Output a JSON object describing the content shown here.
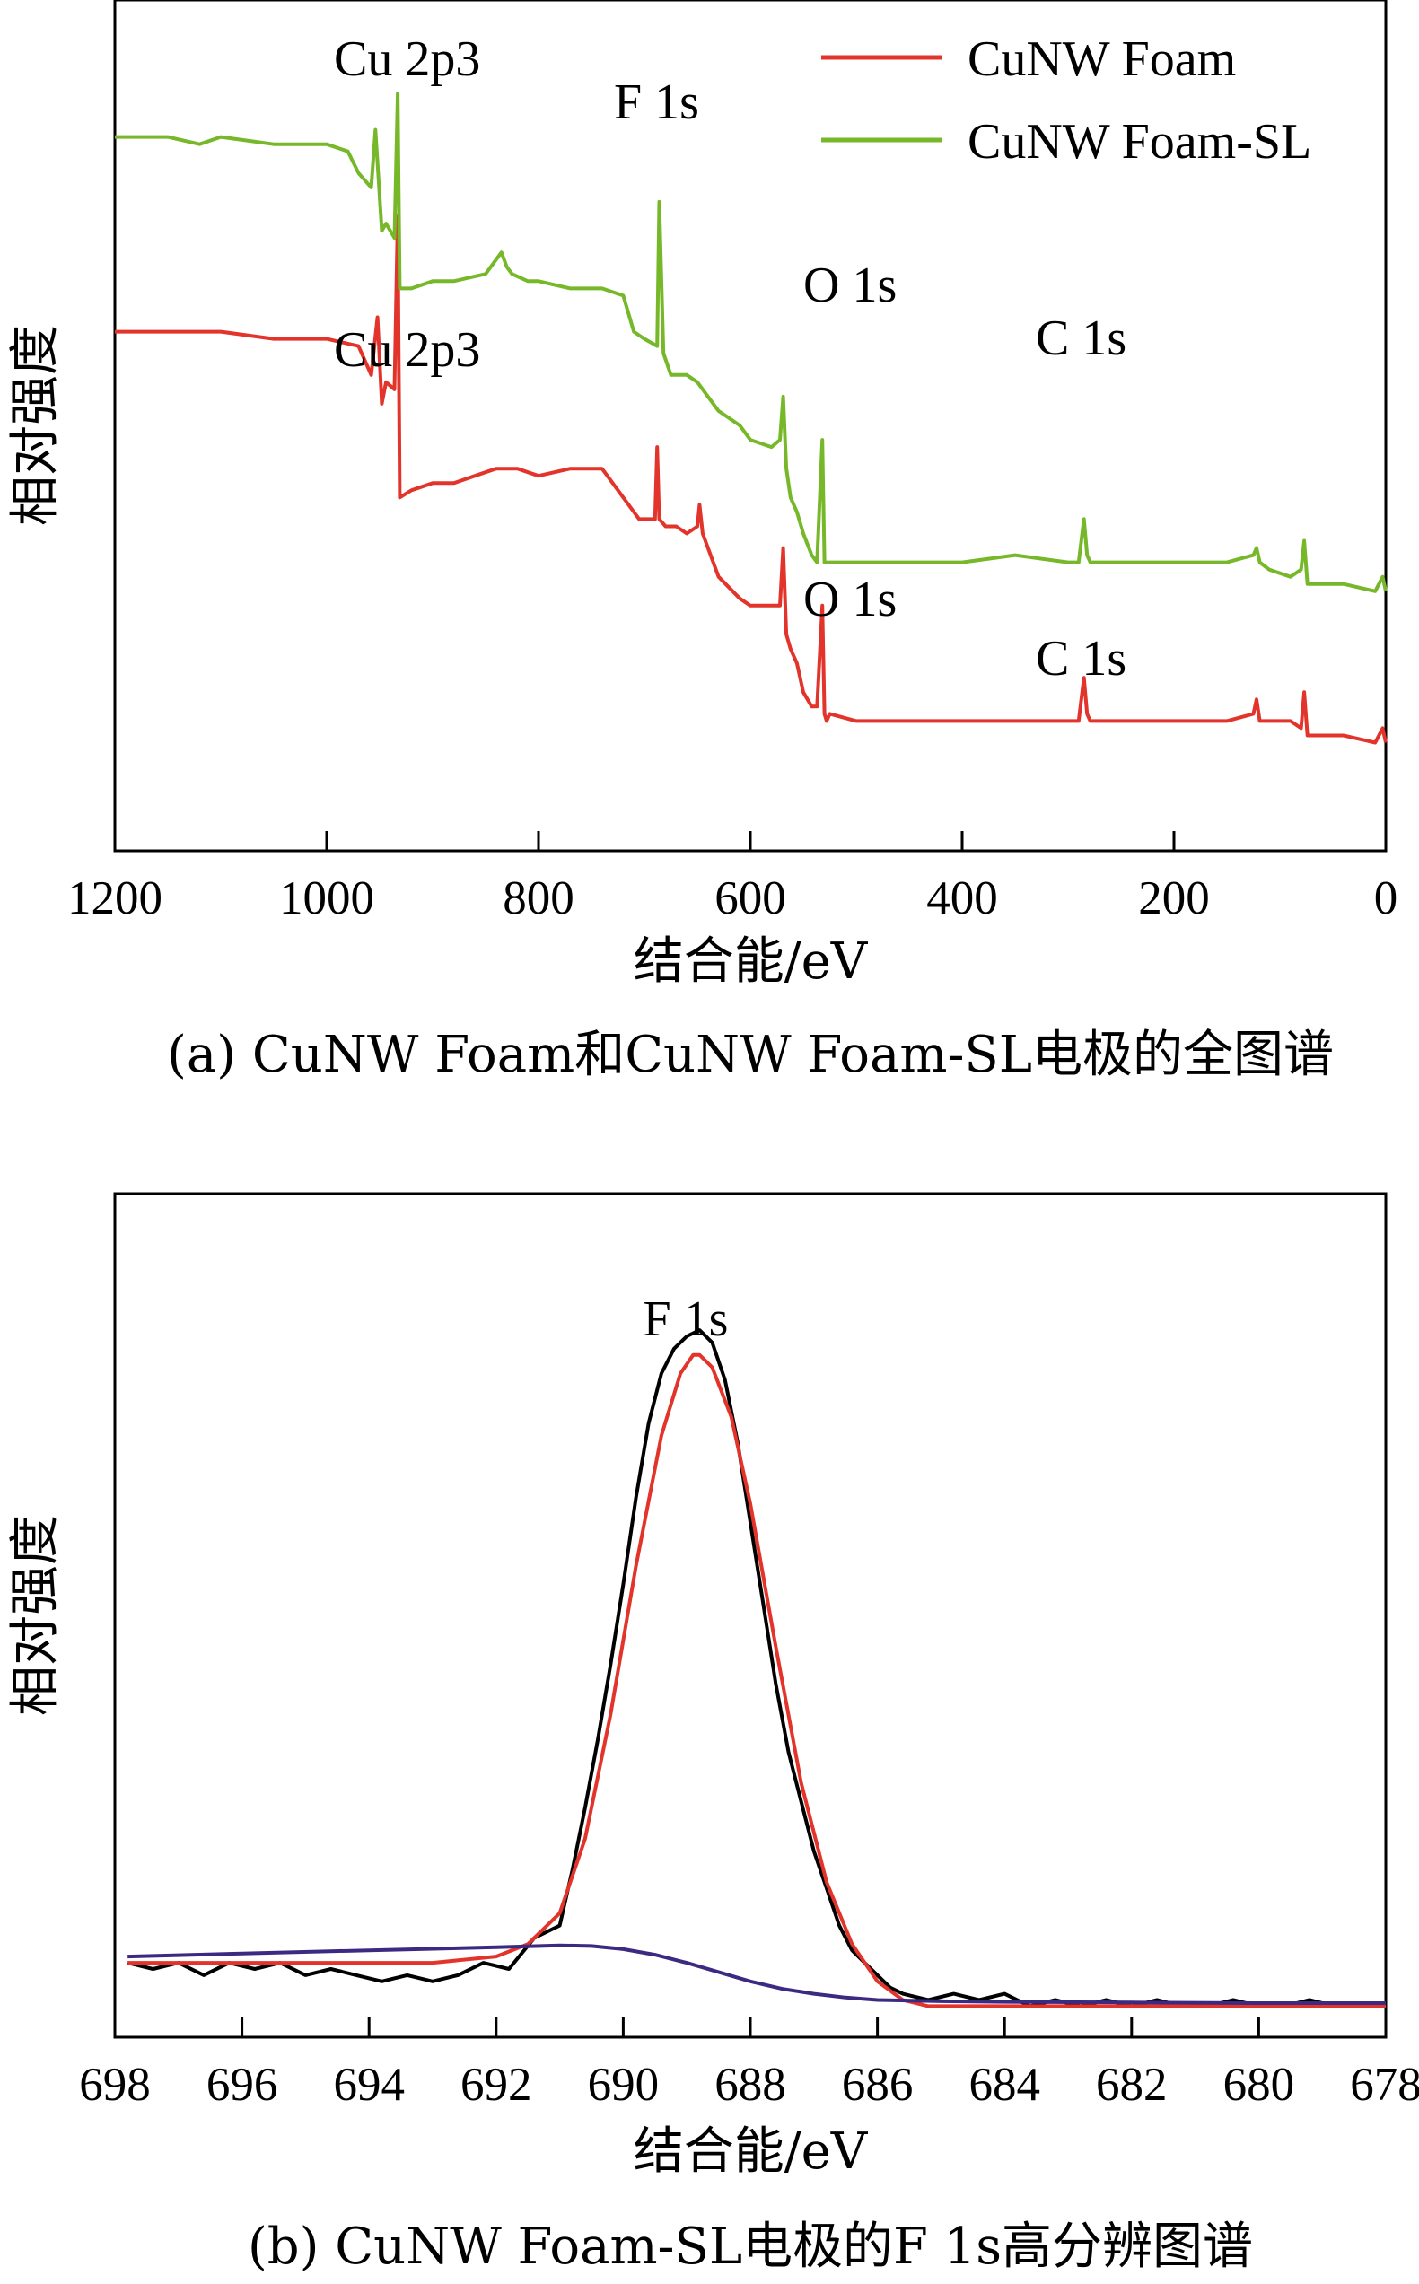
{
  "chart_data": [
    {
      "type": "line",
      "xlabel": "结合能/eV",
      "ylabel": "相对强度",
      "caption": "(a) CuNW Foam和CuNW Foam-SL电极的全图谱",
      "xlim": [
        1200,
        0
      ],
      "x_ticks": [
        "1200",
        "1000",
        "800",
        "600",
        "400",
        "200",
        "0"
      ],
      "y_ticks": false,
      "legend": "top-right",
      "series": [
        {
          "name": "CuNW Foam",
          "color": "#e2342a",
          "x": [
            1200,
            1150,
            1100,
            1050,
            1000,
            970,
            958,
            952,
            948,
            944,
            936,
            933,
            931,
            920,
            900,
            880,
            860,
            840,
            820,
            800,
            770,
            740,
            720,
            705,
            700,
            690,
            688,
            686,
            680,
            670,
            660,
            650,
            648,
            645,
            640,
            630,
            610,
            600,
            580,
            572,
            569,
            566,
            562,
            556,
            550,
            542,
            537,
            532,
            530,
            528,
            525,
            500,
            450,
            400,
            350,
            300,
            290,
            285,
            282,
            279,
            275,
            250,
            200,
            150,
            125,
            122,
            119,
            110,
            90,
            80,
            77,
            74,
            70,
            40,
            10,
            3,
            0
          ],
          "y": [
            0.72,
            0.72,
            0.72,
            0.71,
            0.71,
            0.7,
            0.66,
            0.74,
            0.62,
            0.65,
            0.64,
            0.88,
            0.49,
            0.5,
            0.51,
            0.51,
            0.52,
            0.53,
            0.53,
            0.52,
            0.53,
            0.53,
            0.49,
            0.46,
            0.46,
            0.46,
            0.56,
            0.46,
            0.45,
            0.45,
            0.44,
            0.45,
            0.48,
            0.44,
            0.42,
            0.38,
            0.35,
            0.34,
            0.34,
            0.34,
            0.42,
            0.3,
            0.28,
            0.26,
            0.22,
            0.2,
            0.2,
            0.34,
            0.19,
            0.18,
            0.19,
            0.18,
            0.18,
            0.18,
            0.18,
            0.18,
            0.18,
            0.24,
            0.19,
            0.18,
            0.18,
            0.18,
            0.18,
            0.18,
            0.19,
            0.21,
            0.18,
            0.18,
            0.18,
            0.17,
            0.22,
            0.16,
            0.16,
            0.16,
            0.15,
            0.17,
            0.15
          ]
        },
        {
          "name": "CuNW Foam-SL",
          "color": "#76b82a",
          "x": [
            1200,
            1150,
            1120,
            1100,
            1050,
            1000,
            980,
            970,
            958,
            954,
            948,
            944,
            936,
            933,
            931,
            920,
            900,
            880,
            850,
            835,
            830,
            825,
            810,
            800,
            770,
            740,
            720,
            710,
            700,
            688,
            686,
            682,
            675,
            660,
            650,
            640,
            630,
            610,
            600,
            580,
            572,
            569,
            566,
            562,
            556,
            550,
            542,
            537,
            532,
            530,
            528,
            525,
            500,
            450,
            400,
            350,
            300,
            290,
            285,
            282,
            279,
            275,
            250,
            200,
            150,
            125,
            122,
            119,
            110,
            90,
            80,
            77,
            74,
            70,
            40,
            10,
            3,
            0
          ],
          "y": [
            0.99,
            0.99,
            0.98,
            0.99,
            0.98,
            0.98,
            0.97,
            0.94,
            0.92,
            1.0,
            0.86,
            0.87,
            0.85,
            1.05,
            0.78,
            0.78,
            0.79,
            0.79,
            0.8,
            0.83,
            0.81,
            0.8,
            0.79,
            0.79,
            0.78,
            0.78,
            0.77,
            0.72,
            0.71,
            0.7,
            0.9,
            0.69,
            0.66,
            0.66,
            0.65,
            0.63,
            0.61,
            0.59,
            0.57,
            0.56,
            0.57,
            0.63,
            0.53,
            0.49,
            0.47,
            0.44,
            0.41,
            0.4,
            0.57,
            0.4,
            0.4,
            0.4,
            0.4,
            0.4,
            0.4,
            0.41,
            0.4,
            0.4,
            0.46,
            0.41,
            0.4,
            0.4,
            0.4,
            0.4,
            0.4,
            0.41,
            0.42,
            0.4,
            0.39,
            0.38,
            0.39,
            0.43,
            0.37,
            0.37,
            0.37,
            0.36,
            0.38,
            0.36
          ]
        }
      ],
      "annotations": [
        {
          "text": "Cu 2p3",
          "series": "CuNW Foam-SL"
        },
        {
          "text": "F 1s",
          "series": "CuNW Foam-SL"
        },
        {
          "text": "O 1s",
          "series": "CuNW Foam-SL"
        },
        {
          "text": "C 1s",
          "series": "CuNW Foam-SL"
        },
        {
          "text": "Cu 2p3",
          "series": "CuNW Foam"
        },
        {
          "text": "O 1s",
          "series": "CuNW Foam"
        },
        {
          "text": "C 1s",
          "series": "CuNW Foam"
        }
      ]
    },
    {
      "type": "line",
      "xlabel": "结合能/eV",
      "ylabel": "相对强度",
      "caption": "(b) CuNW Foam-SL电极的F 1s高分辨图谱",
      "xlim": [
        698,
        678
      ],
      "x_ticks": [
        "698",
        "696",
        "694",
        "692",
        "690",
        "688",
        "686",
        "684",
        "682",
        "680",
        "678"
      ],
      "y_ticks": false,
      "annotation": "F 1s",
      "series": [
        {
          "color": "#000000",
          "x": [
            697.8,
            697.4,
            697.0,
            696.6,
            696.2,
            695.8,
            695.4,
            695.0,
            694.6,
            694.2,
            693.8,
            693.4,
            693.0,
            692.6,
            692.2,
            691.8,
            691.4,
            691.0,
            690.8,
            690.6,
            690.4,
            690.2,
            690.0,
            689.8,
            689.6,
            689.4,
            689.2,
            689.0,
            688.8,
            688.6,
            688.4,
            688.2,
            688.0,
            687.8,
            687.6,
            687.4,
            687.2,
            687.0,
            686.8,
            686.6,
            686.4,
            686.2,
            686.0,
            685.8,
            685.6,
            685.2,
            684.8,
            684.4,
            684.0,
            683.6,
            683.2,
            682.8,
            682.4,
            682.0,
            681.6,
            681.2,
            680.8,
            680.4,
            680.0,
            679.6,
            679.2,
            678.8
          ],
          "y": [
            0.02,
            0.01,
            0.02,
            0.0,
            0.02,
            0.01,
            0.02,
            0.0,
            0.01,
            0.0,
            -0.01,
            0.0,
            -0.01,
            0.0,
            0.02,
            0.01,
            0.06,
            0.08,
            0.17,
            0.27,
            0.38,
            0.5,
            0.63,
            0.77,
            0.89,
            0.97,
            1.01,
            1.03,
            1.04,
            1.02,
            0.96,
            0.86,
            0.73,
            0.6,
            0.47,
            0.36,
            0.28,
            0.2,
            0.14,
            0.08,
            0.04,
            0.02,
            0.0,
            -0.02,
            -0.03,
            -0.04,
            -0.03,
            -0.04,
            -0.03,
            -0.05,
            -0.04,
            -0.05,
            -0.04,
            -0.05,
            -0.04,
            -0.05,
            -0.05,
            -0.04,
            -0.05,
            -0.05,
            -0.04,
            -0.05
          ]
        },
        {
          "color": "#e2342a",
          "x": [
            697.8,
            697.0,
            696.0,
            695.0,
            694.0,
            693.0,
            692.0,
            691.5,
            691.0,
            690.6,
            690.2,
            689.8,
            689.4,
            689.1,
            688.9,
            688.8,
            688.6,
            688.3,
            688.0,
            687.6,
            687.2,
            686.8,
            686.4,
            686.0,
            685.6,
            685.2,
            684.0,
            682.0,
            680.0,
            678.0
          ],
          "y": [
            0.02,
            0.02,
            0.02,
            0.02,
            0.02,
            0.02,
            0.03,
            0.05,
            0.1,
            0.22,
            0.42,
            0.66,
            0.87,
            0.97,
            1.0,
            1.0,
            0.98,
            0.9,
            0.76,
            0.53,
            0.31,
            0.15,
            0.05,
            -0.01,
            -0.04,
            -0.05,
            -0.05,
            -0.05,
            -0.05,
            -0.05
          ]
        },
        {
          "color": "#3c2a82",
          "x": [
            697.8,
            696.0,
            694.0,
            692.0,
            691.0,
            690.5,
            690.0,
            689.5,
            689.0,
            688.5,
            688.0,
            687.5,
            687.0,
            686.5,
            686.0,
            685.0,
            684.0,
            682.0,
            680.0,
            678.0
          ],
          "y": [
            0.03,
            0.035,
            0.04,
            0.045,
            0.048,
            0.047,
            0.042,
            0.033,
            0.02,
            0.005,
            -0.01,
            -0.022,
            -0.03,
            -0.036,
            -0.04,
            -0.042,
            -0.043,
            -0.044,
            -0.045,
            -0.045
          ]
        }
      ]
    }
  ]
}
